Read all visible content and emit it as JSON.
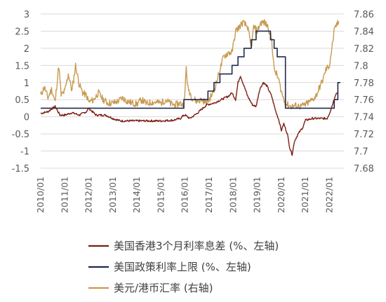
{
  "chart_data": {
    "type": "line",
    "y_left": {
      "min": -1.5,
      "max": 3,
      "ticks": [
        "3",
        "2.5",
        "2",
        "1.5",
        "1",
        "0.5",
        "0",
        "-0.5",
        "-1",
        "-1.5"
      ]
    },
    "y_right": {
      "min": 7.68,
      "max": 7.86,
      "ticks": [
        "7.86",
        "7.84",
        "7.82",
        "7.8",
        "7.78",
        "7.76",
        "7.74",
        "7.72",
        "7.7",
        "7.68"
      ]
    },
    "x_ticks": [
      "2010/01",
      "2011/01",
      "2012/01",
      "2013/01",
      "2014/01",
      "2015/01",
      "2016/01",
      "2017/01",
      "2018/01",
      "2019/01",
      "2020/01",
      "2021/01",
      "2022/01"
    ],
    "grid": "horizontal",
    "legend_position": "bottom",
    "series": [
      {
        "name": "美国香港3个月利率息差 (%、左轴)",
        "color": "#7b1e12",
        "axis": "left",
        "points": [
          [
            2010.0,
            0.1
          ],
          [
            2010.3,
            0.15
          ],
          [
            2010.6,
            0.3
          ],
          [
            2010.8,
            0.05
          ],
          [
            2011.0,
            0.05
          ],
          [
            2011.3,
            0.12
          ],
          [
            2011.6,
            0.05
          ],
          [
            2011.9,
            0.15
          ],
          [
            2012.0,
            0.25
          ],
          [
            2012.3,
            0.05
          ],
          [
            2012.7,
            0.05
          ],
          [
            2013.0,
            -0.05
          ],
          [
            2013.3,
            -0.12
          ],
          [
            2014.0,
            -0.12
          ],
          [
            2015.0,
            -0.12
          ],
          [
            2015.5,
            -0.1
          ],
          [
            2015.8,
            -0.05
          ],
          [
            2015.95,
            0.05
          ],
          [
            2016.0,
            0.05
          ],
          [
            2016.2,
            -0.05
          ],
          [
            2016.5,
            0.1
          ],
          [
            2016.9,
            0.35
          ],
          [
            2017.2,
            0.4
          ],
          [
            2017.5,
            0.5
          ],
          [
            2017.8,
            0.6
          ],
          [
            2017.95,
            0.7
          ],
          [
            2018.1,
            0.5
          ],
          [
            2018.2,
            1.0
          ],
          [
            2018.3,
            1.2
          ],
          [
            2018.45,
            0.9
          ],
          [
            2018.6,
            0.6
          ],
          [
            2018.8,
            0.35
          ],
          [
            2018.95,
            0.3
          ],
          [
            2019.1,
            0.8
          ],
          [
            2019.25,
            1.0
          ],
          [
            2019.4,
            0.9
          ],
          [
            2019.6,
            0.6
          ],
          [
            2019.75,
            0.2
          ],
          [
            2019.9,
            -0.1
          ],
          [
            2020.0,
            -0.4
          ],
          [
            2020.1,
            -0.2
          ],
          [
            2020.25,
            -0.5
          ],
          [
            2020.35,
            -0.9
          ],
          [
            2020.45,
            -1.1
          ],
          [
            2020.55,
            -0.7
          ],
          [
            2020.7,
            -0.5
          ],
          [
            2020.9,
            -0.3
          ],
          [
            2021.0,
            -0.1
          ],
          [
            2021.3,
            -0.05
          ],
          [
            2021.6,
            -0.05
          ],
          [
            2021.9,
            -0.05
          ],
          [
            2022.0,
            0.1
          ],
          [
            2022.1,
            0.3
          ],
          [
            2022.25,
            0.65
          ],
          [
            2022.35,
            0.72
          ]
        ]
      },
      {
        "name": "美国政策利率上限 (%、左轴)",
        "color": "#1f2a4d",
        "axis": "left",
        "points": [
          [
            2010.0,
            0.25
          ],
          [
            2015.95,
            0.25
          ],
          [
            2015.95,
            0.5
          ],
          [
            2016.95,
            0.5
          ],
          [
            2016.95,
            0.75
          ],
          [
            2017.2,
            0.75
          ],
          [
            2017.2,
            1.0
          ],
          [
            2017.45,
            1.0
          ],
          [
            2017.45,
            1.25
          ],
          [
            2017.95,
            1.25
          ],
          [
            2017.95,
            1.5
          ],
          [
            2018.2,
            1.5
          ],
          [
            2018.2,
            1.75
          ],
          [
            2018.45,
            1.75
          ],
          [
            2018.45,
            2.0
          ],
          [
            2018.75,
            2.0
          ],
          [
            2018.75,
            2.25
          ],
          [
            2018.95,
            2.25
          ],
          [
            2018.95,
            2.5
          ],
          [
            2019.55,
            2.5
          ],
          [
            2019.55,
            2.25
          ],
          [
            2019.7,
            2.25
          ],
          [
            2019.7,
            2.0
          ],
          [
            2019.83,
            2.0
          ],
          [
            2019.83,
            1.75
          ],
          [
            2020.17,
            1.75
          ],
          [
            2020.17,
            0.25
          ],
          [
            2022.2,
            0.25
          ],
          [
            2022.2,
            0.5
          ],
          [
            2022.35,
            0.5
          ],
          [
            2022.35,
            1.0
          ],
          [
            2022.45,
            1.0
          ]
        ]
      },
      {
        "name": "美元/港币汇率 (右轴)",
        "color": "#c89a50",
        "axis": "right",
        "points": [
          [
            2010.0,
            7.765
          ],
          [
            2010.15,
            7.775
          ],
          [
            2010.3,
            7.762
          ],
          [
            2010.45,
            7.772
          ],
          [
            2010.6,
            7.757
          ],
          [
            2010.75,
            7.8
          ],
          [
            2010.85,
            7.765
          ],
          [
            2011.0,
            7.77
          ],
          [
            2011.15,
            7.79
          ],
          [
            2011.3,
            7.77
          ],
          [
            2011.45,
            7.8
          ],
          [
            2011.6,
            7.778
          ],
          [
            2011.75,
            7.768
          ],
          [
            2011.9,
            7.765
          ],
          [
            2012.0,
            7.757
          ],
          [
            2012.2,
            7.76
          ],
          [
            2012.4,
            7.768
          ],
          [
            2012.6,
            7.76
          ],
          [
            2012.8,
            7.756
          ],
          [
            2013.0,
            7.756
          ],
          [
            2013.2,
            7.758
          ],
          [
            2013.4,
            7.762
          ],
          [
            2013.6,
            7.758
          ],
          [
            2013.8,
            7.756
          ],
          [
            2014.0,
            7.755
          ],
          [
            2014.2,
            7.76
          ],
          [
            2014.4,
            7.755
          ],
          [
            2014.6,
            7.757
          ],
          [
            2014.8,
            7.757
          ],
          [
            2015.0,
            7.756
          ],
          [
            2015.2,
            7.76
          ],
          [
            2015.4,
            7.755
          ],
          [
            2015.6,
            7.754
          ],
          [
            2015.8,
            7.756
          ],
          [
            2015.9,
            7.754
          ],
          [
            2015.98,
            7.76
          ],
          [
            2016.05,
            7.8
          ],
          [
            2016.1,
            7.775
          ],
          [
            2016.3,
            7.762
          ],
          [
            2016.5,
            7.758
          ],
          [
            2016.7,
            7.76
          ],
          [
            2016.9,
            7.756
          ],
          [
            2017.0,
            7.76
          ],
          [
            2017.2,
            7.77
          ],
          [
            2017.4,
            7.79
          ],
          [
            2017.6,
            7.81
          ],
          [
            2017.8,
            7.815
          ],
          [
            2017.95,
            7.815
          ],
          [
            2018.1,
            7.84
          ],
          [
            2018.4,
            7.85
          ],
          [
            2018.6,
            7.845
          ],
          [
            2018.75,
            7.82
          ],
          [
            2018.85,
            7.845
          ],
          [
            2019.0,
            7.84
          ],
          [
            2019.15,
            7.85
          ],
          [
            2019.3,
            7.85
          ],
          [
            2019.45,
            7.845
          ],
          [
            2019.6,
            7.83
          ],
          [
            2019.7,
            7.795
          ],
          [
            2019.8,
            7.79
          ],
          [
            2019.9,
            7.782
          ],
          [
            2020.0,
            7.77
          ],
          [
            2020.1,
            7.76
          ],
          [
            2020.2,
            7.755
          ],
          [
            2020.4,
            7.752
          ],
          [
            2020.6,
            7.753
          ],
          [
            2020.8,
            7.752
          ],
          [
            2021.0,
            7.754
          ],
          [
            2021.15,
            7.757
          ],
          [
            2021.3,
            7.76
          ],
          [
            2021.45,
            7.765
          ],
          [
            2021.6,
            7.775
          ],
          [
            2021.75,
            7.785
          ],
          [
            2021.85,
            7.795
          ],
          [
            2022.0,
            7.8
          ],
          [
            2022.1,
            7.82
          ],
          [
            2022.2,
            7.84
          ],
          [
            2022.3,
            7.848
          ],
          [
            2022.4,
            7.85
          ]
        ]
      }
    ]
  }
}
